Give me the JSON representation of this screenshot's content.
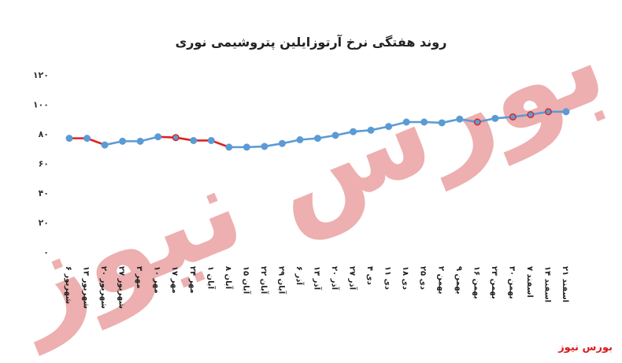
{
  "watermark_text": "بورس نیوز",
  "brand": "بورس نیوز",
  "colors": {
    "line_blue": "#5b9bd5",
    "line_red": "#e02020",
    "marker_blue": "#5b9bd5",
    "marker_red": "#e02020",
    "watermark": "#e06e6e"
  },
  "chart_data": {
    "type": "line",
    "title": "روند هفتگی نرخ آرتوزایلین پتروشیمی نوری",
    "xlabel": "",
    "ylabel": "",
    "ylim": [
      0,
      120
    ],
    "yticks": [
      "۰",
      "۲۰",
      "۴۰",
      "۶۰",
      "۸۰",
      "۱۰۰",
      "۱۲۰"
    ],
    "grid": false,
    "categories": [
      "۶ شهریور",
      "۱۳ شهریور",
      "۲۰ شهریور",
      "۲۷ شهریور",
      "۳ مهر",
      "۱۰ مهر",
      "۱۷ مهر",
      "۲۴ مهر",
      "۱ آبان",
      "۸ آبان",
      "۱۵ آبان",
      "۲۲ آبان",
      "۲۹ آبان",
      "۶ آذر",
      "۱۳ آذر",
      "۲۰ آذر",
      "۲۷ آذر",
      "۴ دی",
      "۱۱ دی",
      "۱۸ دی",
      "۲۵ دی",
      "۲ بهمن",
      "۹ بهمن",
      "۱۶ بهمن",
      "۲۳ بهمن",
      "۳۰ بهمن",
      "۷ اسفند",
      "۱۴ اسفند",
      "۲۱ اسفند"
    ],
    "values": [
      77,
      77,
      72.5,
      75,
      75,
      78,
      77.5,
      75.5,
      75.5,
      71,
      71,
      71.5,
      73.5,
      76,
      77,
      79,
      81.5,
      82.5,
      85,
      88,
      88,
      87.5,
      90,
      88,
      90.5,
      91.5,
      93,
      95,
      95
    ],
    "segment_colors": [
      "red",
      "red",
      "blue",
      "blue",
      "blue",
      "red",
      "red",
      "red",
      "red",
      "blue",
      "blue",
      "blue",
      "blue",
      "blue",
      "blue",
      "blue",
      "blue",
      "blue",
      "blue",
      "blue",
      "blue",
      "blue",
      "blue",
      "blue",
      "blue",
      "blue",
      "blue",
      "blue"
    ],
    "marker_colors": [
      "blue",
      "blue",
      "blue",
      "blue",
      "blue",
      "blue",
      "red",
      "blue",
      "blue",
      "blue",
      "blue",
      "blue",
      "blue",
      "blue",
      "blue",
      "blue",
      "blue",
      "blue",
      "blue",
      "blue",
      "blue",
      "blue",
      "blue",
      "red",
      "blue",
      "red",
      "red",
      "red",
      "blue"
    ]
  }
}
